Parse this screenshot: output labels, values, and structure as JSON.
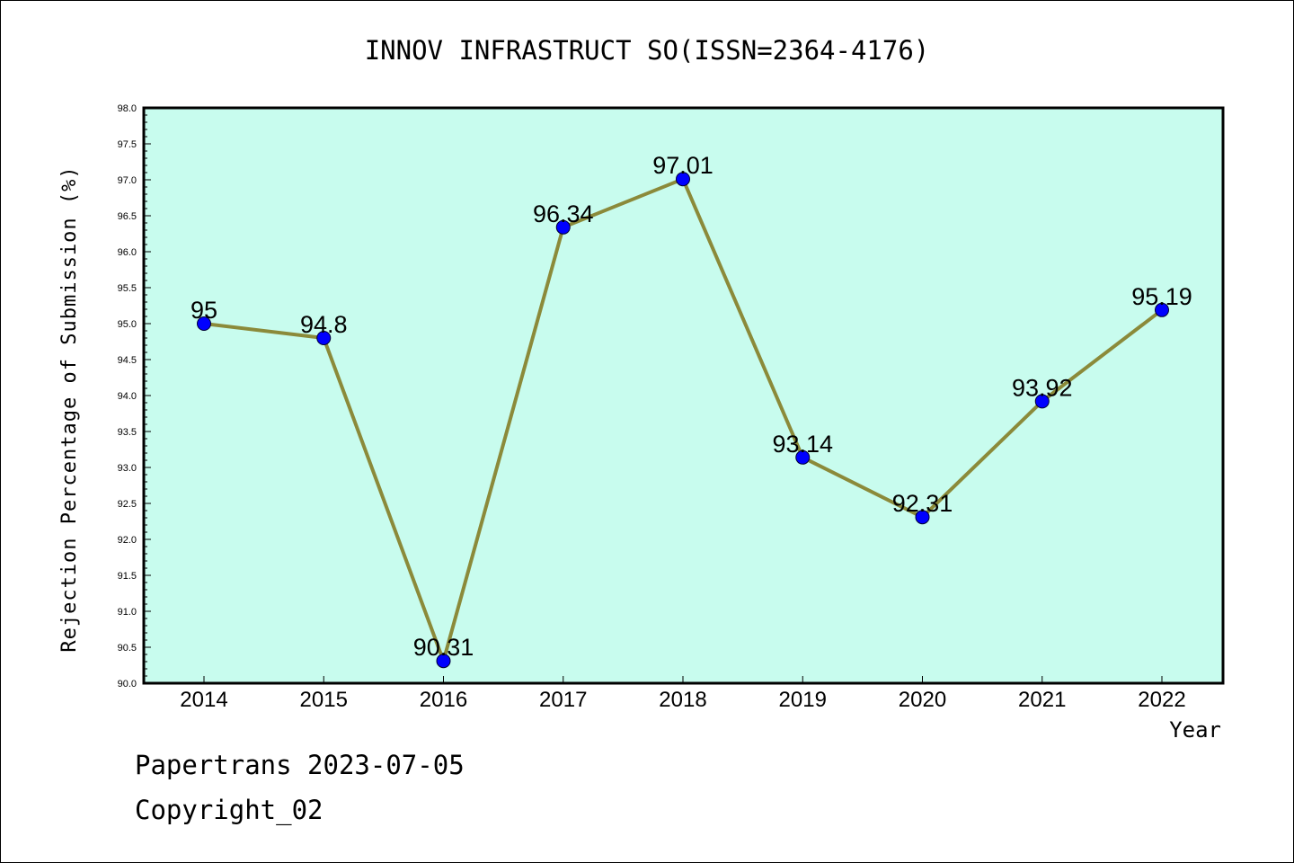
{
  "footer": {
    "date_text": "Papertrans 2023-07-05",
    "copyright_text": "Copyright_02"
  },
  "chart_data": {
    "type": "line",
    "title": "INNOV INFRASTRUCT SO(ISSN=2364-4176)",
    "xlabel": "Year",
    "ylabel": "Rejection Percentage of Submission (%)",
    "categories": [
      "2014",
      "2015",
      "2016",
      "2017",
      "2018",
      "2019",
      "2020",
      "2021",
      "2022"
    ],
    "values": [
      95,
      94.8,
      90.31,
      96.34,
      97.01,
      93.14,
      92.31,
      93.92,
      95.19
    ],
    "data_labels": [
      "95",
      "94.8",
      "90.31",
      "96.34",
      "97.01",
      "93.14",
      "92.31",
      "93.92",
      "95.19"
    ],
    "ylim": [
      90.0,
      98.0
    ],
    "yticks": [
      "90.0",
      "90.5",
      "91.0",
      "91.5",
      "92.0",
      "92.5",
      "93.0",
      "93.5",
      "94.0",
      "94.5",
      "95.0",
      "95.5",
      "96.0",
      "96.5",
      "97.0",
      "97.5",
      "98.0"
    ],
    "grid": false,
    "colors": {
      "plot_background": "#c8fcee",
      "line": "#8b8a3a",
      "marker": "#0000ff"
    }
  }
}
